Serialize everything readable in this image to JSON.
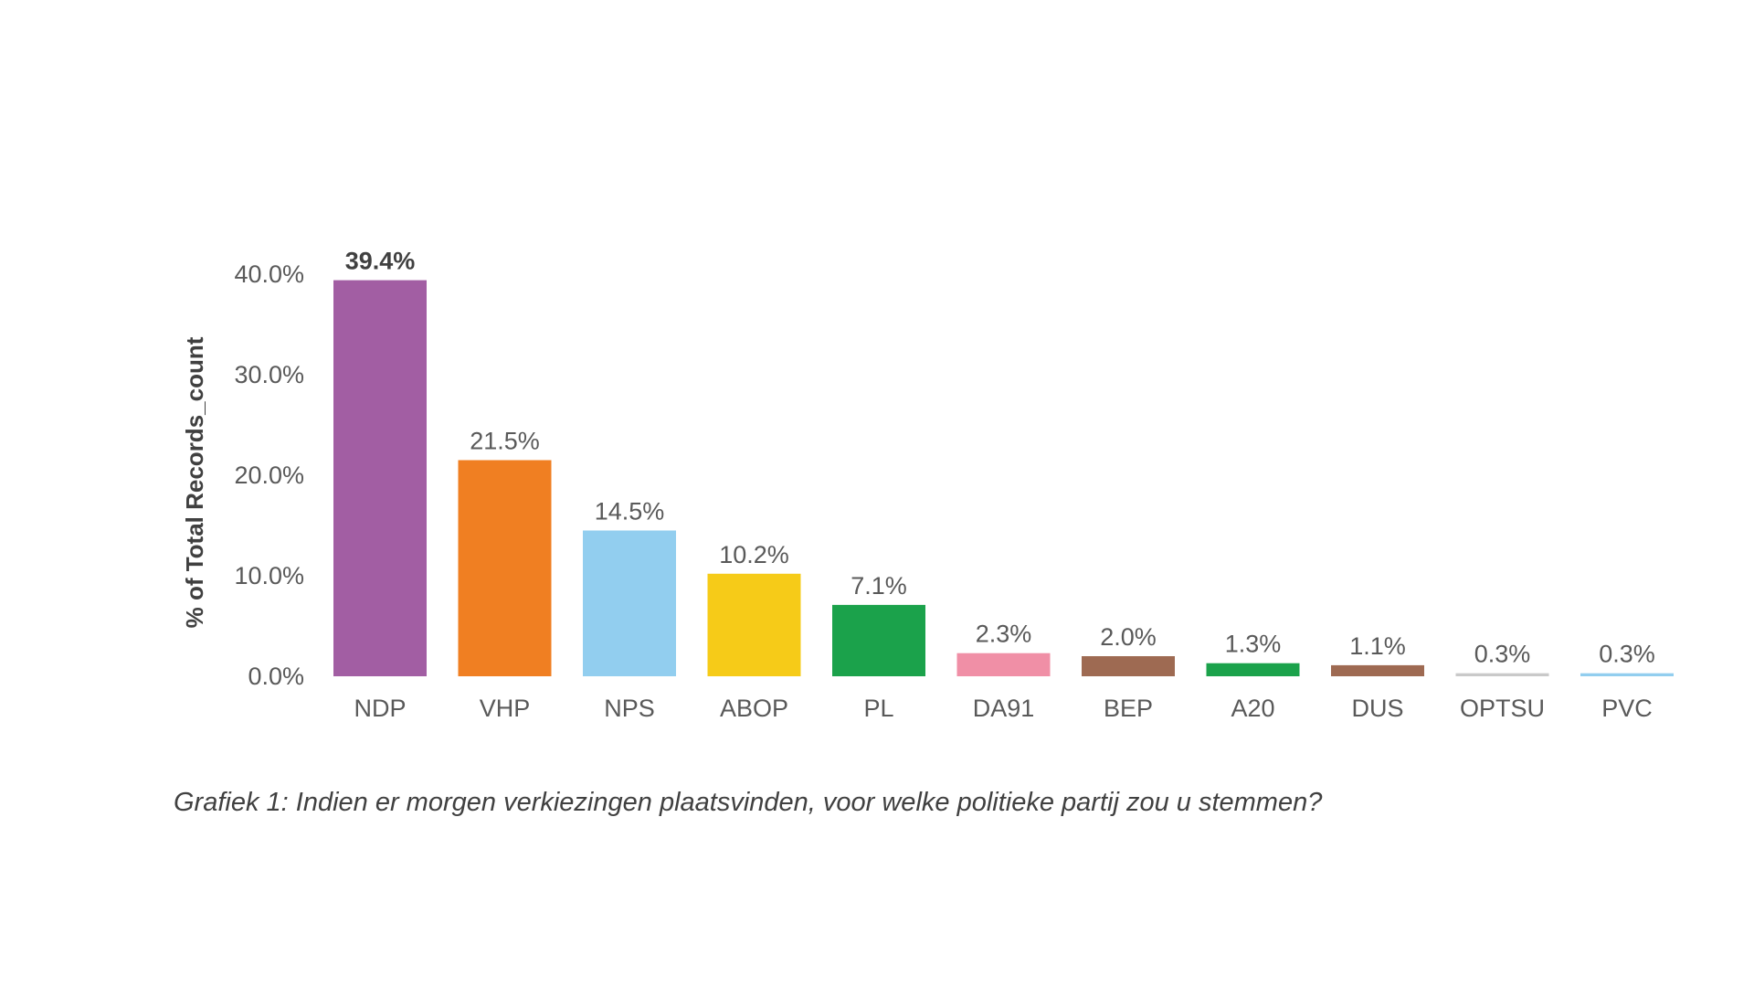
{
  "chart_data": {
    "type": "bar",
    "categories": [
      "NDP",
      "VHP",
      "NPS",
      "ABOP",
      "PL",
      "DA91",
      "BEP",
      "A20",
      "DUS",
      "OPTSU",
      "PVC"
    ],
    "values": [
      39.4,
      21.5,
      14.5,
      10.2,
      7.1,
      2.3,
      2.0,
      1.3,
      1.1,
      0.3,
      0.3
    ],
    "data_labels": [
      "39.4%",
      "21.5%",
      "14.5%",
      "10.2%",
      "7.1%",
      "2.3%",
      "2.0%",
      "1.3%",
      "1.1%",
      "0.3%",
      "0.3%"
    ],
    "colors": [
      "#A25EA3",
      "#F07F22",
      "#92CEEF",
      "#F6CB18",
      "#1BA24B",
      "#F08FA6",
      "#9E6A52",
      "#1BA24B",
      "#9E6A52",
      "#C9C9C9",
      "#92CEEF"
    ],
    "ylabel": "% of Total Records_count",
    "y_ticks": [
      "0.0%",
      "10.0%",
      "20.0%",
      "30.0%",
      "40.0%"
    ],
    "ylim": [
      0,
      40
    ],
    "grid": false,
    "legend": "none"
  },
  "caption": "Grafiek 1: Indien er morgen verkiezingen plaatsvinden, voor welke politieke partij zou u stemmen?"
}
